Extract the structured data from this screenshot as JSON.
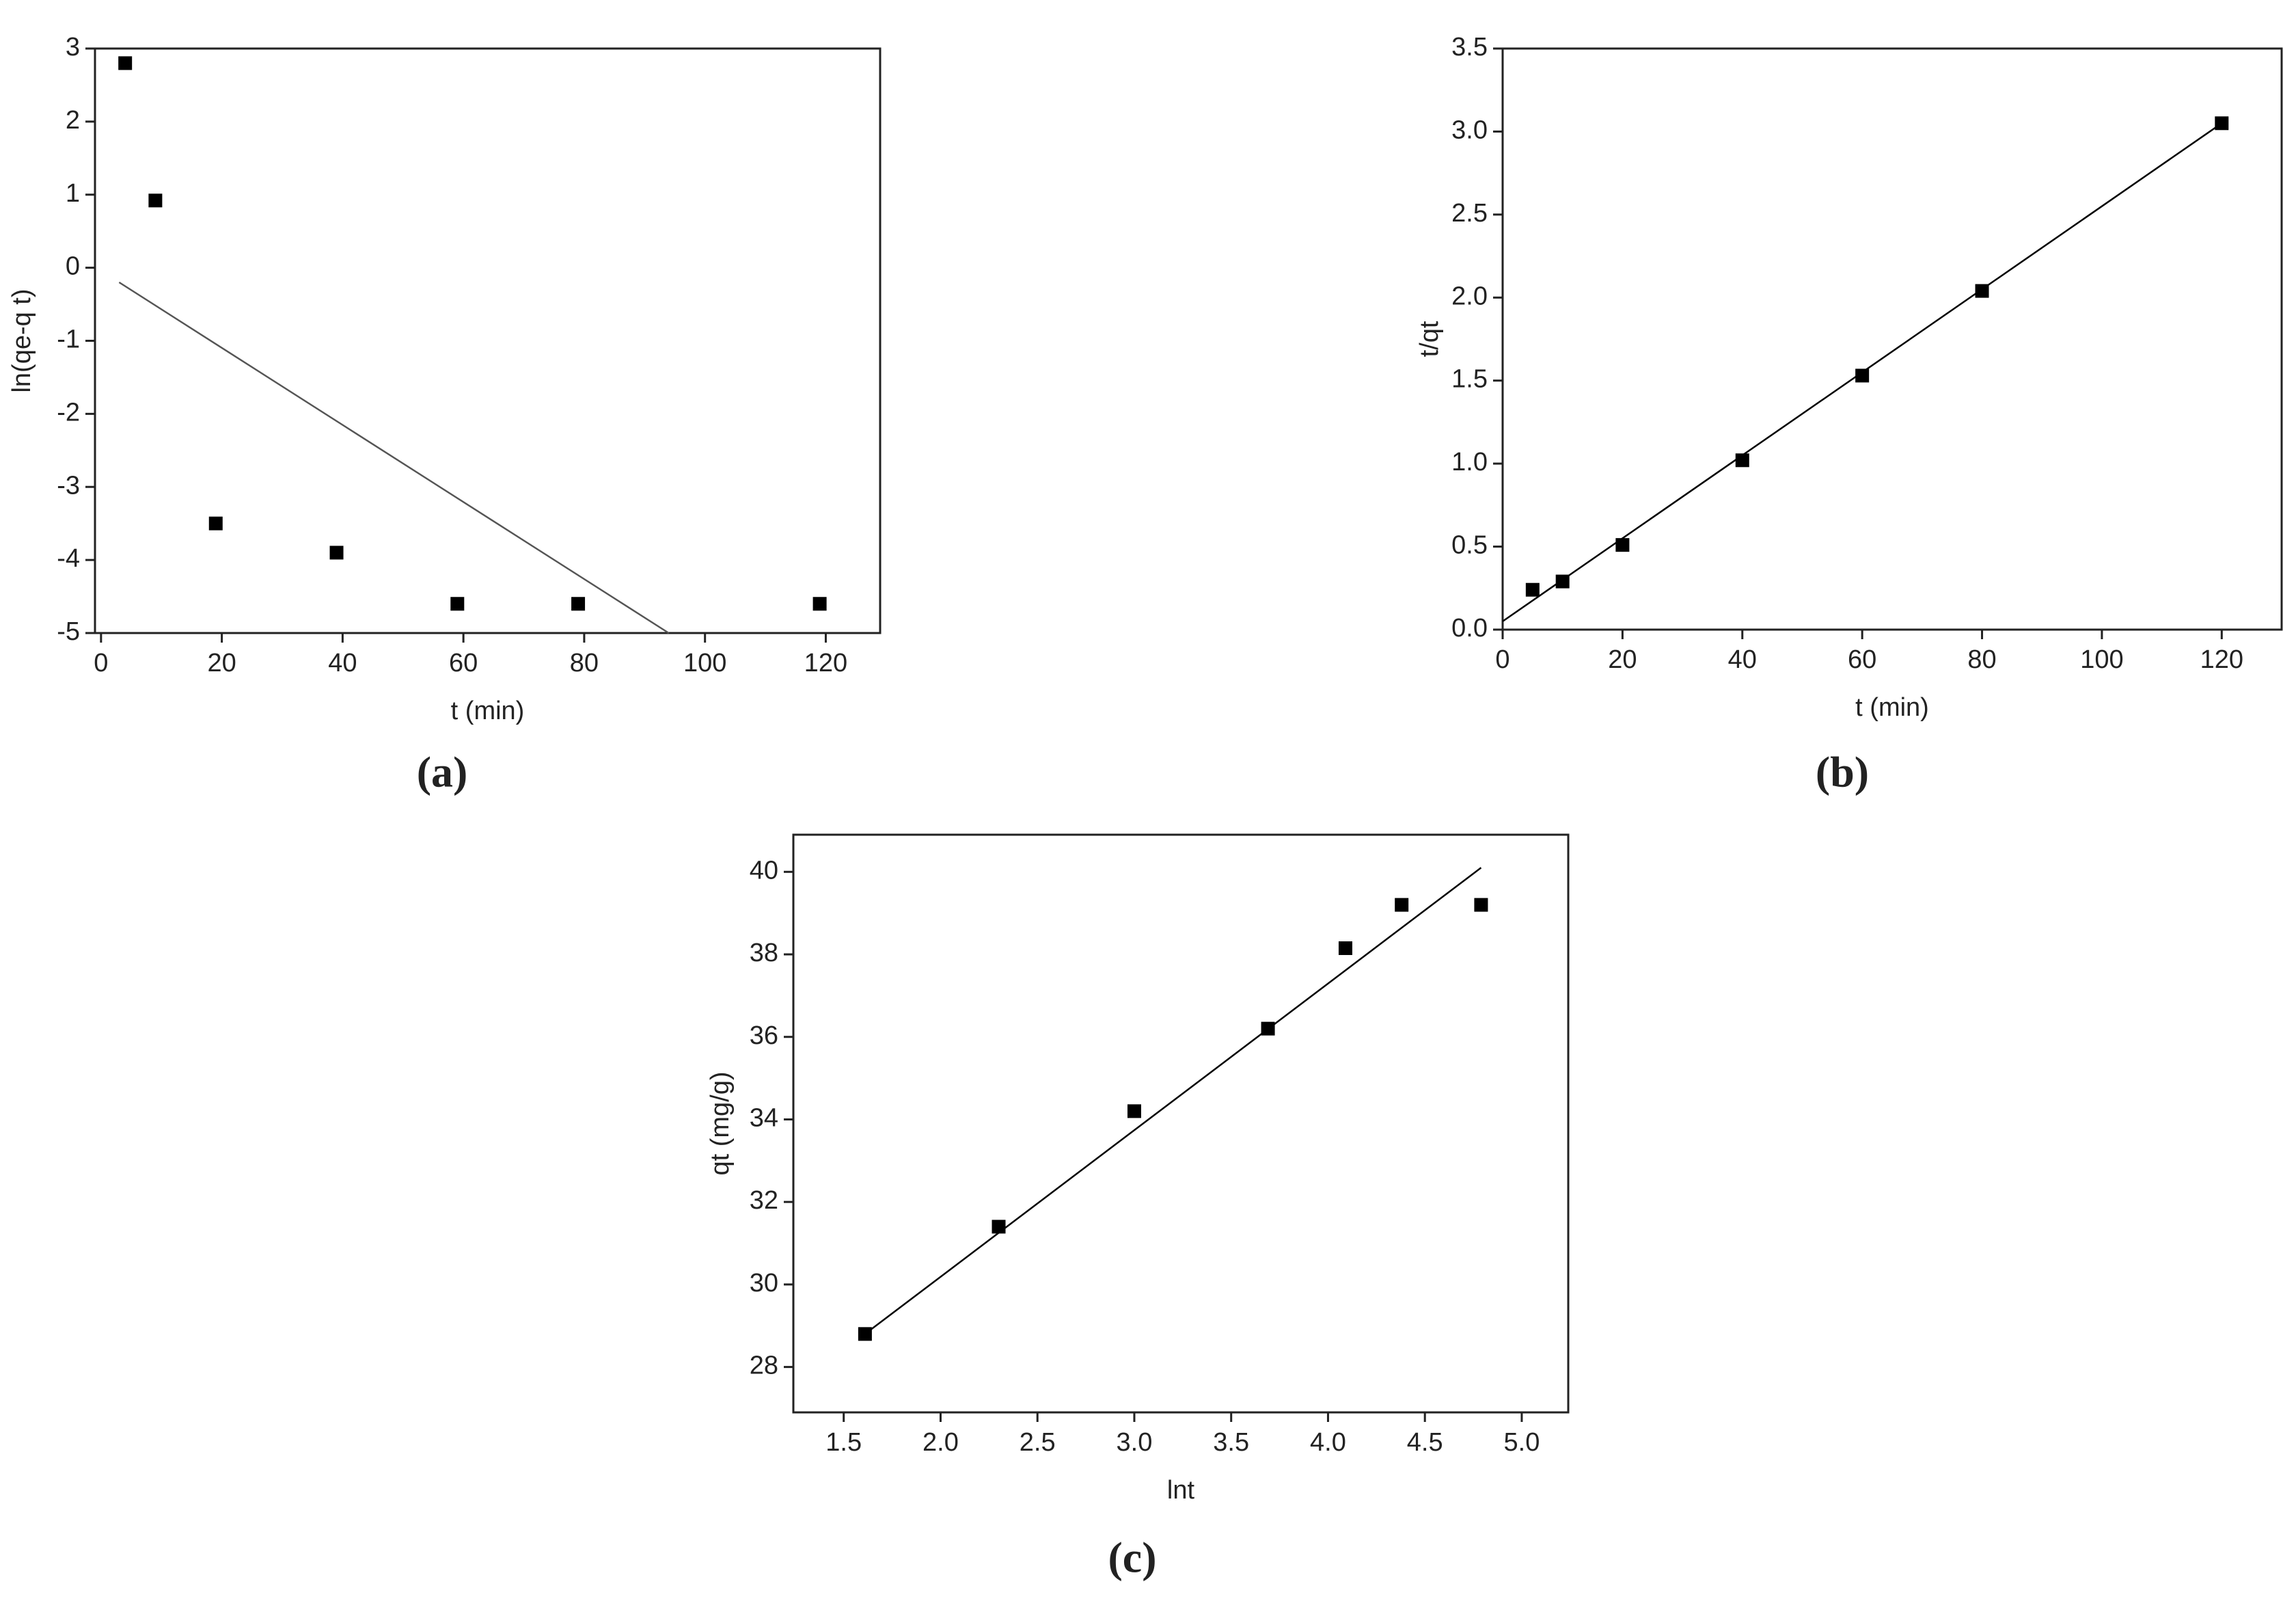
{
  "chart_data": [
    {
      "type": "scatter",
      "label": "(a)",
      "x_label": "t (min)",
      "y_label": "ln(qe-q t)",
      "xlim": [
        -1,
        129
      ],
      "ylim": [
        -5,
        3
      ],
      "xticks": [
        0,
        20,
        40,
        60,
        80,
        100,
        120
      ],
      "yticks": [
        -5,
        -4,
        -3,
        -2,
        -1,
        0,
        1,
        2,
        3
      ],
      "series": [
        {
          "style": "marker",
          "color": "#000000",
          "x": [
            4,
            9,
            19,
            39,
            59,
            79,
            119
          ],
          "values": [
            2.8,
            0.92,
            -3.5,
            -3.9,
            -4.6,
            -4.6,
            -4.6
          ]
        },
        {
          "style": "line",
          "color": "#555555",
          "x": [
            3,
            94
          ],
          "values": [
            -0.2,
            -5
          ]
        }
      ]
    },
    {
      "type": "scatter",
      "label": "(b)",
      "x_label": "t (min)",
      "y_label": "t/qt",
      "xlim": [
        0,
        130
      ],
      "ylim": [
        0,
        3.5
      ],
      "xticks": [
        0,
        20,
        40,
        60,
        80,
        100,
        120
      ],
      "yticks": [
        {
          "value": 0,
          "label": "0.0"
        },
        0.5,
        {
          "value": 1,
          "label": "1.0"
        },
        1.5,
        {
          "value": 2,
          "label": "2.0"
        },
        2.5,
        {
          "value": 3,
          "label": "3.0"
        },
        3.5
      ],
      "series": [
        {
          "style": "marker",
          "color": "#000000",
          "x": [
            5,
            10,
            20,
            40,
            60,
            80,
            120
          ],
          "values": [
            0.24,
            0.29,
            0.51,
            1.02,
            1.53,
            2.04,
            3.05
          ]
        },
        {
          "style": "line",
          "color": "#000000",
          "x": [
            0,
            120
          ],
          "values": [
            0.05,
            3.05
          ]
        }
      ]
    },
    {
      "type": "scatter",
      "label": "(c)",
      "x_label": "lnt",
      "y_label": "qt (mg/g)",
      "xlim": [
        1.24,
        5.24
      ],
      "ylim": [
        26.9,
        40.9
      ],
      "xticks": [
        1.5,
        {
          "value": 2,
          "label": "2.0"
        },
        2.5,
        {
          "value": 3,
          "label": "3.0"
        },
        3.5,
        {
          "value": 4,
          "label": "4.0"
        },
        4.5,
        {
          "value": 5,
          "label": "5.0"
        }
      ],
      "yticks": [
        28,
        30,
        32,
        34,
        36,
        38,
        40
      ],
      "series": [
        {
          "style": "marker",
          "color": "#000000",
          "x": [
            1.61,
            2.3,
            3.0,
            3.69,
            4.09,
            4.38,
            4.79
          ],
          "values": [
            28.8,
            31.4,
            34.2,
            36.2,
            38.15,
            39.2,
            39.2
          ]
        },
        {
          "style": "line",
          "color": "#000000",
          "x": [
            1.61,
            4.79
          ],
          "values": [
            28.8,
            40.1
          ]
        }
      ]
    }
  ]
}
